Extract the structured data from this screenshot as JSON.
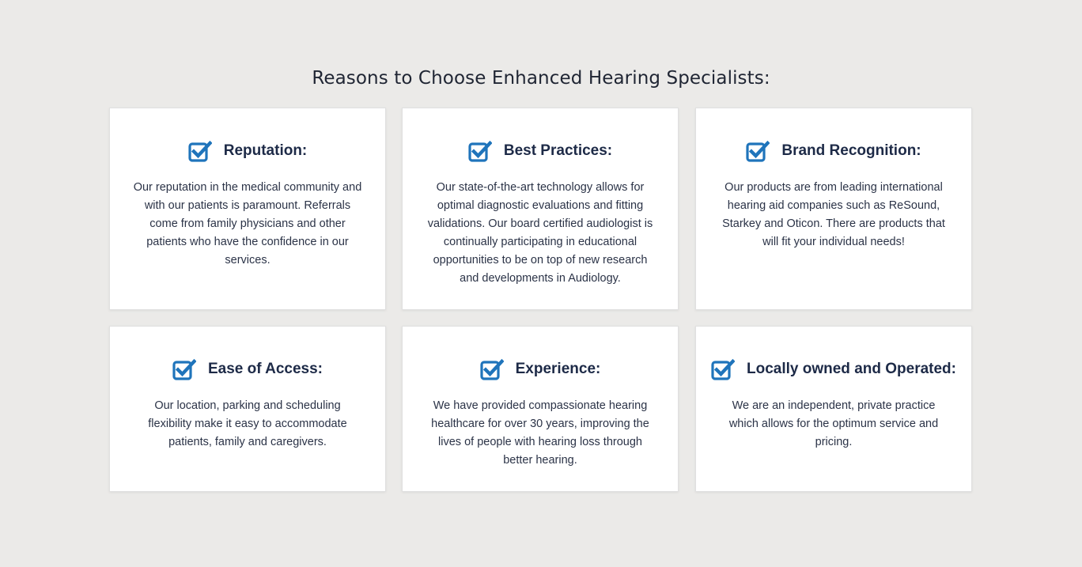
{
  "section": {
    "title": "Reasons to Choose Enhanced Hearing Specialists:"
  },
  "colors": {
    "background": "#ebeae8",
    "card": "#ffffff",
    "icon": "#1f74bb",
    "heading": "#1d2a47",
    "text": "#2b3347"
  },
  "cards": [
    {
      "icon": "checkbox-checked-icon",
      "title": "Reputation:",
      "body": "Our reputation in the medical community and with our patients is paramount. Referrals come from family physicians and other patients who have the confidence in our services."
    },
    {
      "icon": "checkbox-checked-icon",
      "title": "Best Practices:",
      "body": "Our state-of-the-art technology allows for optimal diagnostic evaluations and fitting validations. Our board certified audiologist is continually participating in educational opportunities to be on top of new research and developments in Audiology."
    },
    {
      "icon": "checkbox-checked-icon",
      "title": "Brand Recognition:",
      "body": "Our products are from leading international hearing aid companies such as ReSound, Starkey and Oticon. There are products that will fit your individual needs!"
    },
    {
      "icon": "checkbox-checked-icon",
      "title": "Ease of Access:",
      "body": "Our location, parking and scheduling flexibility make it easy to accommodate patients, family and caregivers."
    },
    {
      "icon": "checkbox-checked-icon",
      "title": "Experience:",
      "body": "We have provided compassionate hearing healthcare for over 30 years, improving the lives of people with hearing loss through better hearing."
    },
    {
      "icon": "checkbox-checked-icon",
      "title": "Locally owned and Operated:",
      "body": "We are an independent, private practice which allows for the optimum service and pricing."
    }
  ]
}
